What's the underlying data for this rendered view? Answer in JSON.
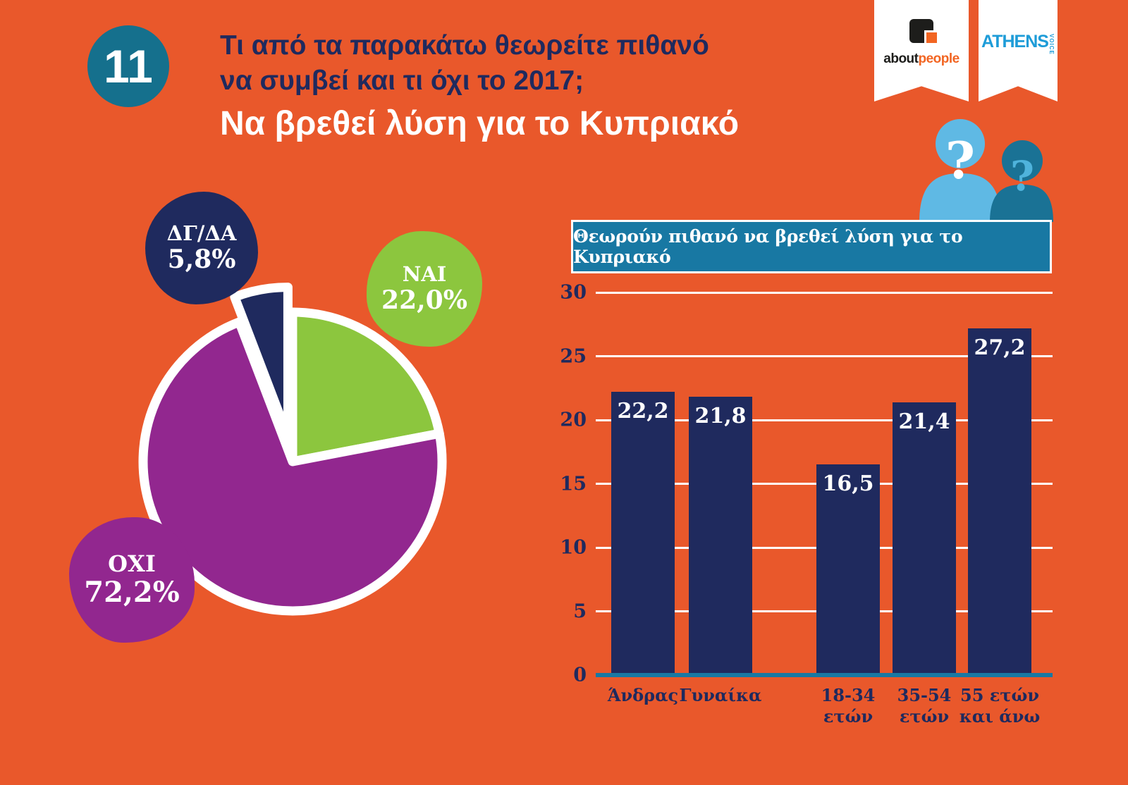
{
  "header": {
    "number": "11",
    "title_line1": "Τι από τα παρακάτω θεωρείτε πιθανό",
    "title_line2": "να συμβεί και τι όχι το 2017;",
    "subtitle": "Να βρεθεί λύση για το Κυπριακό"
  },
  "logos": {
    "aboutpeople_about": "about",
    "aboutpeople_people": "people",
    "athens_name": "ATHENS",
    "athens_voice": "VOICE"
  },
  "illustration": {
    "question_mark": "?"
  },
  "colors": {
    "background": "#E9582B",
    "navy": "#1F2A5E",
    "teal_banner": "#1878A3",
    "teal_circle": "#15708D",
    "purple": "#92278F",
    "green": "#8CC63E",
    "light_blue": "#5FB9E4",
    "white": "#FFFFFF"
  },
  "chart_data": [
    {
      "type": "pie",
      "title": "",
      "start_angle": -20.9,
      "slices": [
        {
          "label": "ΔΓ/ΔΑ",
          "value": 5.8,
          "display": "5,8%",
          "color": "#1F2A5E",
          "exploded": true
        },
        {
          "label": "ΝΑΙ",
          "value": 22.0,
          "display": "22,0%",
          "color": "#8CC63E",
          "exploded": false
        },
        {
          "label": "ΟΧΙ",
          "value": 72.2,
          "display": "72,2%",
          "color": "#92278F",
          "exploded": false
        }
      ]
    },
    {
      "type": "bar",
      "title": "Θεωρούν πιθανό να βρεθεί λύση για το Κυπριακό",
      "categories": [
        "Άνδρας",
        "Γυναίκα",
        "18-34\nετών",
        "35-54\nετών",
        "55 ετών\nκαι άνω"
      ],
      "values": [
        22.2,
        21.8,
        16.5,
        21.4,
        27.2
      ],
      "value_labels": [
        "22,2",
        "21,8",
        "16,5",
        "21,4",
        "27,2"
      ],
      "xlabel": "",
      "ylabel": "",
      "ylim": [
        0,
        30
      ],
      "yticks": [
        0,
        5,
        10,
        15,
        20,
        25,
        30
      ],
      "bar_color": "#1F2A5E",
      "grid": true,
      "legend": false
    }
  ]
}
